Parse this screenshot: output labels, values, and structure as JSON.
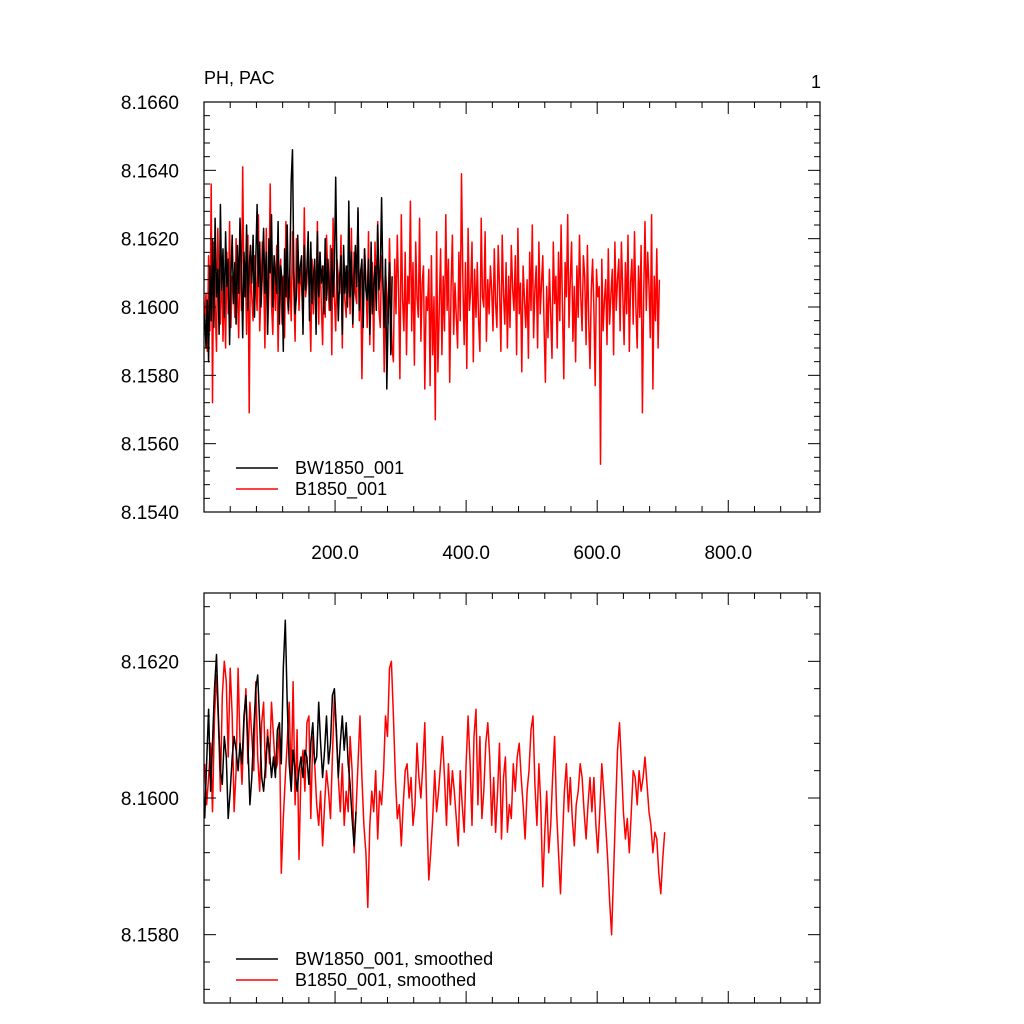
{
  "chart_data": [
    {
      "type": "line",
      "title_left": "PH, PAC",
      "title_right": "1",
      "xlim": [
        0,
        940
      ],
      "ylim": [
        8.154,
        8.166
      ],
      "x_ticks": [
        {
          "value": 200,
          "label": "200.0"
        },
        {
          "value": 400,
          "label": "400.0"
        },
        {
          "value": 600,
          "label": "600.0"
        },
        {
          "value": 800,
          "label": "800.0"
        }
      ],
      "y_ticks": [
        {
          "value": 8.154,
          "label": "8.1540"
        },
        {
          "value": 8.156,
          "label": "8.1560"
        },
        {
          "value": 8.158,
          "label": "8.1580"
        },
        {
          "value": 8.16,
          "label": "8.1600"
        },
        {
          "value": 8.162,
          "label": "8.1620"
        },
        {
          "value": 8.164,
          "label": "8.1640"
        },
        {
          "value": 8.166,
          "label": "8.1660"
        }
      ],
      "legend_position": "bottom-left",
      "series": [
        {
          "name": "BW1850_001",
          "color": "#000000",
          "x_start": 1,
          "x_step": 2,
          "values": [
            8.1598,
            8.1588,
            8.1602,
            8.1584,
            8.1612,
            8.1596,
            8.162,
            8.1594,
            8.1626,
            8.1603,
            8.1611,
            8.1592,
            8.163,
            8.1605,
            8.1617,
            8.1597,
            8.1622,
            8.1606,
            8.1614,
            8.1589,
            8.1609,
            8.1621,
            8.1601,
            8.1613,
            8.1595,
            8.1618,
            8.1604,
            8.1626,
            8.1611,
            8.1591,
            8.1616,
            8.1603,
            8.1624,
            8.1599,
            8.1612,
            8.1618,
            8.1607,
            8.1621,
            8.1597,
            8.1614,
            8.163,
            8.1606,
            8.1619,
            8.16,
            8.161,
            8.1623,
            8.1604,
            8.1616,
            8.1592,
            8.162,
            8.161,
            8.1627,
            8.16,
            8.1615,
            8.1609,
            8.1604,
            8.1625,
            8.1595,
            8.1612,
            8.1608,
            8.1587,
            8.1617,
            8.1603,
            8.1624,
            8.1599,
            8.161,
            8.1637,
            8.1646,
            8.1611,
            8.1598,
            8.1603,
            8.1621,
            8.1607,
            8.1612,
            8.1615,
            8.1592,
            8.1618,
            8.1605,
            8.1611,
            8.1622,
            8.1596,
            8.1619,
            8.1601,
            8.1609,
            8.1614,
            8.1592,
            8.1622,
            8.1603,
            8.1616,
            8.1607,
            8.1612,
            8.1598,
            8.162,
            8.1602,
            8.1614,
            8.1606,
            8.1599,
            8.1617,
            8.1603,
            8.1611,
            8.1638,
            8.161,
            8.1596,
            8.1609,
            8.1615,
            8.1592,
            8.1618,
            8.1604,
            8.1612,
            8.16,
            8.1631,
            8.1603,
            8.1616,
            8.1595,
            8.1608,
            8.1618,
            8.1606,
            8.1629,
            8.1599,
            8.161,
            8.1614,
            8.1594,
            8.1617,
            8.1605,
            8.1602,
            8.1614,
            8.1592,
            8.1619,
            8.1598,
            8.1606,
            8.1612,
            8.1599,
            8.1624,
            8.1605,
            8.1611,
            8.1632,
            8.1607,
            8.1594,
            8.1614,
            8.1576,
            8.1597,
            8.1613,
            8.1586,
            8.1609
          ]
        },
        {
          "name": "B1850_001",
          "color": "#ff0000",
          "x_start": 1,
          "x_step": 2,
          "values": [
            8.1597,
            8.1604,
            8.1587,
            8.1615,
            8.1593,
            8.1636,
            8.1572,
            8.1619,
            8.1601,
            8.1587,
            8.1623,
            8.1602,
            8.1595,
            8.1614,
            8.159,
            8.1607,
            8.1588,
            8.1616,
            8.1598,
            8.1625,
            8.1594,
            8.1609,
            8.1608,
            8.1597,
            8.162,
            8.1604,
            8.1591,
            8.1617,
            8.1599,
            8.1641,
            8.1603,
            8.1613,
            8.1592,
            8.1621,
            8.1569,
            8.1618,
            8.1603,
            8.1596,
            8.1615,
            8.1608,
            8.1599,
            8.1627,
            8.1593,
            8.1604,
            8.1619,
            8.161,
            8.1588,
            8.1623,
            8.1592,
            8.1605,
            8.1636,
            8.1601,
            8.1592,
            8.1612,
            8.1599,
            8.1618,
            8.1587,
            8.1607,
            8.1614,
            8.1595,
            8.1609,
            8.1591,
            8.1625,
            8.1603,
            8.1598,
            8.1611,
            8.1596,
            8.1622,
            8.1605,
            8.159,
            8.162,
            8.1615,
            8.1599,
            8.1611,
            8.1606,
            8.1596,
            8.1629,
            8.1603,
            8.1607,
            8.1618,
            8.1602,
            8.1587,
            8.1614,
            8.1598,
            8.1612,
            8.1603,
            8.1625,
            8.1595,
            8.1616,
            8.1601,
            8.1589,
            8.1612,
            8.1597,
            8.1621,
            8.1608,
            8.1599,
            8.1618,
            8.1586,
            8.1626,
            8.1603,
            8.1593,
            8.1614,
            8.1609,
            8.1604,
            8.1621,
            8.1588,
            8.1615,
            8.1602,
            8.1597,
            8.1612,
            8.1609,
            8.1598,
            8.1623,
            8.1594,
            8.1616,
            8.1604,
            8.1601,
            8.1628,
            8.1596,
            8.1611,
            8.1579,
            8.1603,
            8.1617,
            8.1608,
            8.1594,
            8.1622,
            8.1589,
            8.1606,
            8.1613,
            8.1587,
            8.1619,
            8.1601,
            8.1625,
            8.1599,
            8.1594,
            8.1615,
            8.1608,
            8.1581,
            8.1611,
            8.1604,
            8.1595,
            8.162,
            8.1601,
            8.1588,
            8.1584,
            8.1614,
            8.1598,
            8.1621,
            8.1605,
            8.1579,
            8.1627,
            8.1602,
            8.1593,
            8.1616,
            8.1586,
            8.1609,
            8.1601,
            8.1631,
            8.1593,
            8.1613,
            8.1583,
            8.1619,
            8.1603,
            8.1597,
            8.1626,
            8.159,
            8.1607,
            8.1612,
            8.1576,
            8.1603,
            8.1599,
            8.1611,
            8.1577,
            8.1615,
            8.1586,
            8.1603,
            8.1567,
            8.1622,
            8.1581,
            8.16,
            8.1617,
            8.1586,
            8.1609,
            8.1593,
            8.1627,
            8.1599,
            8.1614,
            8.1578,
            8.1606,
            8.1621,
            8.1592,
            8.1607,
            8.1597,
            8.1588,
            8.1616,
            8.1596,
            8.1639,
            8.1607,
            8.1589,
            8.1613,
            8.1582,
            8.1623,
            8.1599,
            8.1605,
            8.1619,
            8.1584,
            8.1611,
            8.1597,
            8.1613,
            8.1596,
            8.1587,
            8.1626,
            8.1603,
            8.16,
            8.1622,
            8.159,
            8.1608,
            8.1598,
            8.1612,
            8.1605,
            8.1593,
            8.1617,
            8.1601,
            8.1594,
            8.1618,
            8.1606,
            8.1587,
            8.1621,
            8.1604,
            8.1595,
            8.1613,
            8.1588,
            8.1609,
            8.1594,
            8.1618,
            8.1605,
            8.1599,
            8.1615,
            8.1586,
            8.1623,
            8.1598,
            8.1607,
            8.1581,
            8.1612,
            8.1602,
            8.1594,
            8.1608,
            8.1585,
            8.1616,
            8.1599,
            8.1624,
            8.1591,
            8.1605,
            8.1612,
            8.1588,
            8.1619,
            8.1598,
            8.1607,
            8.1615,
            8.1594,
            8.1578,
            8.1606,
            8.1591,
            8.1611,
            8.1598,
            8.1585,
            8.1619,
            8.1601,
            8.1609,
            8.1588,
            8.1616,
            8.1596,
            8.1624,
            8.1599,
            8.1579,
            8.1613,
            8.1603,
            8.1627,
            8.1594,
            8.1608,
            8.1619,
            8.159,
            8.1606,
            8.1584,
            8.1612,
            8.1597,
            8.1621,
            8.1603,
            8.1593,
            8.1615,
            8.1609,
            8.1589,
            8.1618,
            8.1596,
            8.1582,
            8.1605,
            8.1614,
            8.1599,
            8.1577,
            8.1611,
            8.1603,
            8.1606,
            8.1554,
            8.1614,
            8.1593,
            8.1602,
            8.1608,
            8.1589,
            8.1617,
            8.1595,
            8.1604,
            8.1611,
            8.1586,
            8.1619,
            8.1599,
            8.1608,
            8.1614,
            8.1593,
            8.1619,
            8.1605,
            8.1589,
            8.1613,
            8.1598,
            8.1621,
            8.1587,
            8.1607,
            8.1614,
            8.1595,
            8.1622,
            8.16,
            8.1588,
            8.1612,
            8.1597,
            8.1618,
            8.1569,
            8.1604,
            8.1625,
            8.1599,
            8.1616,
            8.1606,
            8.1591,
            8.1627,
            8.1576,
            8.1609,
            8.1596,
            8.1617,
            8.1588,
            8.1608
          ]
        }
      ]
    },
    {
      "type": "line",
      "xlim": [
        0,
        940
      ],
      "ylim": [
        8.157,
        8.163
      ],
      "x_ticks": [
        {
          "value": 200,
          "label": ""
        },
        {
          "value": 400,
          "label": ""
        },
        {
          "value": 600,
          "label": ""
        },
        {
          "value": 800,
          "label": ""
        }
      ],
      "y_ticks": [
        {
          "value": 8.158,
          "label": "8.1580"
        },
        {
          "value": 8.16,
          "label": "8.1600"
        },
        {
          "value": 8.162,
          "label": "8.1620"
        }
      ],
      "legend_position": "bottom-left",
      "series": [
        {
          "name": "BW1850_001, smoothed",
          "color": "#000000",
          "x_start": 1,
          "x_step": 3,
          "values": [
            8.1597,
            8.1605,
            8.1613,
            8.1601,
            8.1608,
            8.1616,
            8.1621,
            8.1612,
            8.1604,
            8.1602,
            8.1609,
            8.1606,
            8.1597,
            8.1601,
            8.1606,
            8.1609,
            8.1607,
            8.1604,
            8.1608,
            8.1605,
            8.1612,
            8.1615,
            8.1608,
            8.1599,
            8.1603,
            8.161,
            8.1616,
            8.1618,
            8.1611,
            8.1603,
            8.1601,
            8.1605,
            8.1609,
            8.1607,
            8.1603,
            8.1606,
            8.1603,
            8.161,
            8.1611,
            8.1605,
            8.1619,
            8.1626,
            8.1614,
            8.1605,
            8.1601,
            8.1607,
            8.1604,
            8.1601,
            8.1604,
            8.1606,
            8.1603,
            8.1607,
            8.1606,
            8.1602,
            8.1608,
            8.1611,
            8.1605,
            8.1606,
            8.1614,
            8.1608,
            8.1603,
            8.1607,
            8.1612,
            8.1605,
            8.1608,
            8.1615,
            8.1616,
            8.161,
            8.1603,
            8.1608,
            8.1612,
            8.1607,
            8.1611,
            8.1605,
            8.1602,
            8.1597,
            8.1593,
            8.1598
          ]
        },
        {
          "name": "B1850_001, smoothed",
          "color": "#ff0000",
          "x_start": 1,
          "x_step": 3,
          "values": [
            8.1605,
            8.1599,
            8.1603,
            8.1608,
            8.1598,
            8.1612,
            8.1618,
            8.1611,
            8.1601,
            8.1615,
            8.162,
            8.1617,
            8.1606,
            8.1619,
            8.1612,
            8.1598,
            8.1604,
            8.1619,
            8.1608,
            8.1602,
            8.1611,
            8.1616,
            8.1605,
            8.1614,
            8.1609,
            8.1604,
            8.1617,
            8.1606,
            8.1601,
            8.1611,
            8.1614,
            8.1603,
            8.161,
            8.1605,
            8.1614,
            8.1609,
            8.1604,
            8.1605,
            8.1611,
            8.1589,
            8.1597,
            8.1603,
            8.1608,
            8.1614,
            8.1602,
            8.1617,
            8.1599,
            8.161,
            8.1591,
            8.1604,
            8.1607,
            8.1601,
            8.1611,
            8.1612,
            8.1597,
            8.1609,
            8.1605,
            8.1599,
            8.1596,
            8.1601,
            8.1593,
            8.1599,
            8.1604,
            8.1601,
            8.1597,
            8.1606,
            8.1615,
            8.1609,
            8.1603,
            8.1598,
            8.1605,
            8.1596,
            8.1601,
            8.1598,
            8.1609,
            8.1604,
            8.1592,
            8.1598,
            8.1605,
            8.1612,
            8.1603,
            8.1596,
            8.1592,
            8.1584,
            8.1596,
            8.1601,
            8.1598,
            8.1604,
            8.1594,
            8.1601,
            8.1599,
            8.1604,
            8.1612,
            8.1609,
            8.1619,
            8.162,
            8.1612,
            8.1603,
            8.1597,
            8.1599,
            8.1593,
            8.1599,
            8.1604,
            8.1605,
            8.16,
            8.1603,
            8.1596,
            8.1599,
            8.1608,
            8.1603,
            8.16,
            8.1605,
            8.1611,
            8.1598,
            8.1588,
            8.1592,
            8.1597,
            8.1604,
            8.1598,
            8.1601,
            8.1605,
            8.1609,
            8.1603,
            8.1596,
            8.1605,
            8.1599,
            8.1604,
            8.1601,
            8.1597,
            8.1593,
            8.1604,
            8.1599,
            8.1595,
            8.1605,
            8.1612,
            8.1605,
            8.1596,
            8.1609,
            8.1613,
            8.1599,
            8.1609,
            8.1597,
            8.1601,
            8.1608,
            8.1611,
            8.1606,
            8.1596,
            8.1603,
            8.1595,
            8.1601,
            8.1608,
            8.1594,
            8.1603,
            8.1606,
            8.1595,
            8.1599,
            8.1597,
            8.1605,
            8.1601,
            8.1606,
            8.1608,
            8.1603,
            8.1599,
            8.1594,
            8.1601,
            8.1604,
            8.161,
            8.1612,
            8.1602,
            8.1596,
            8.1605,
            8.1599,
            8.1587,
            8.1595,
            8.1601,
            8.1592,
            8.1596,
            8.1603,
            8.1609,
            8.1598,
            8.1592,
            8.1586,
            8.1594,
            8.1601,
            8.1605,
            8.1598,
            8.1603,
            8.1597,
            8.1593,
            8.1599,
            8.1601,
            8.1605,
            8.1603,
            8.1598,
            8.1594,
            8.1599,
            8.1603,
            8.1598,
            8.1603,
            8.1596,
            8.1592,
            8.1598,
            8.1605,
            8.1601,
            8.1596,
            8.1591,
            8.1585,
            8.158,
            8.1589,
            8.1598,
            8.1607,
            8.1611,
            8.1605,
            8.1598,
            8.1594,
            8.1597,
            8.1592,
            8.1598,
            8.1604,
            8.1603,
            8.1599,
            8.1604,
            8.1601,
            8.1603,
            8.1606,
            8.1602,
            8.1598,
            8.1596,
            8.1592,
            8.1595,
            8.1594,
            8.1589,
            8.1586,
            8.1591,
            8.1595
          ]
        }
      ]
    }
  ]
}
